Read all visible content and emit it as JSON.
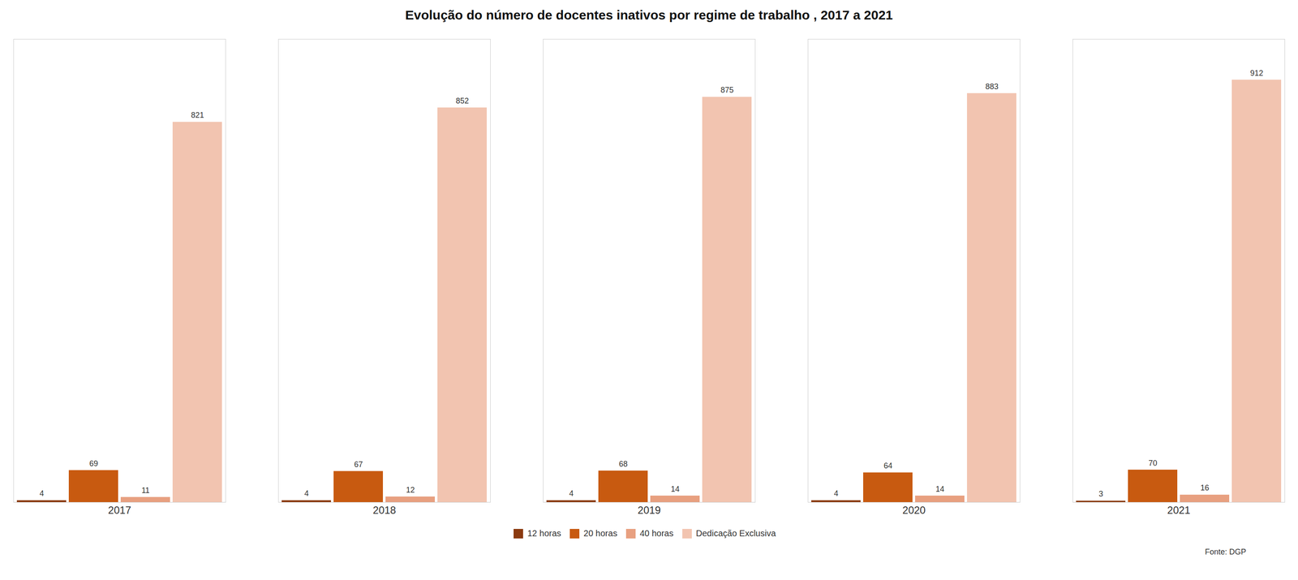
{
  "chart_data": {
    "type": "bar",
    "title": "Evolução do número de docentes inativos por regime de trabalho , 2017 a 2021",
    "categories": [
      "2017",
      "2018",
      "2019",
      "2020",
      "2021"
    ],
    "series": [
      {
        "name": "12 horas",
        "color": "#8B3A0F",
        "values": [
          4,
          4,
          4,
          4,
          3
        ]
      },
      {
        "name": "20 horas",
        "color": "#C85A10",
        "values": [
          69,
          67,
          68,
          64,
          70
        ]
      },
      {
        "name": "40 horas",
        "color": "#E8A080",
        "values": [
          11,
          12,
          14,
          14,
          16
        ]
      },
      {
        "name": "Dedicação Exclusiva",
        "color": "#F2C4B0",
        "values": [
          821,
          852,
          875,
          883,
          912
        ]
      }
    ],
    "ylim": [
      0,
      1000
    ],
    "grid": false,
    "legend": "bottom",
    "data_labels": true,
    "tick_labels": "x",
    "annotations": [
      "Fonte: DGP"
    ]
  }
}
